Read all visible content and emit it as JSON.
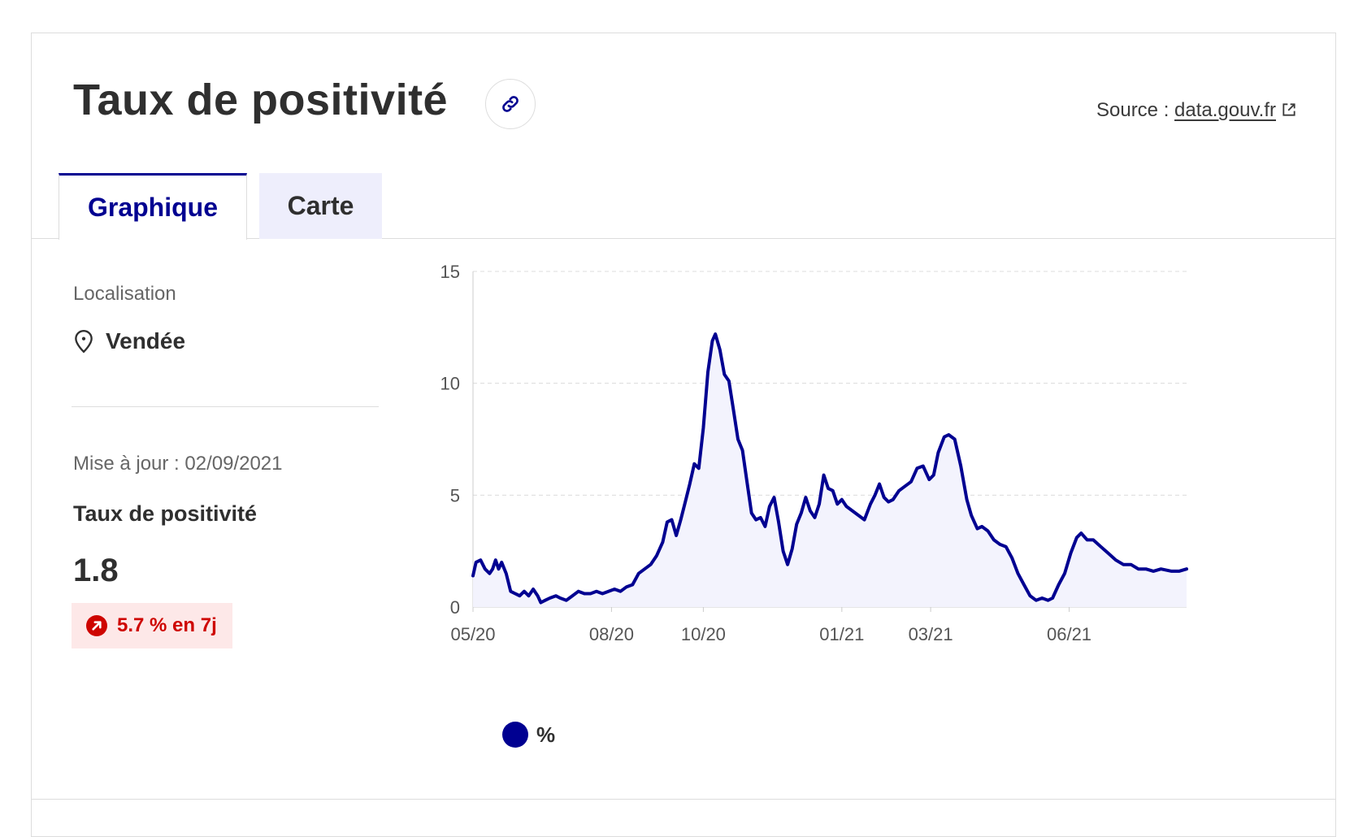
{
  "header": {
    "title": "Taux de positivité",
    "source_label": "Source : ",
    "source_link": "data.gouv.fr"
  },
  "tabs": [
    {
      "label": "Graphique",
      "active": true
    },
    {
      "label": "Carte",
      "active": false
    }
  ],
  "sidebar": {
    "location_label": "Localisation",
    "location_value": "Vendée",
    "update_text": "Mise à jour : 02/09/2021",
    "metric_label": "Taux de positivité",
    "metric_value": "1.8",
    "change_text": "5.7 % en 7j"
  },
  "colors": {
    "accent": "#000091",
    "badge_bg": "#fde8e8",
    "badge_text": "#ce0500",
    "area_fill": "#f3f3fd"
  },
  "legend": {
    "label": "%"
  },
  "chart_data": {
    "type": "area",
    "x_ticks": [
      "05/20",
      "08/20",
      "10/20",
      "01/21",
      "03/21",
      "06/21"
    ],
    "y_ticks": [
      0,
      5,
      10,
      15
    ],
    "ylim": [
      0,
      15
    ],
    "xlim": [
      "2020-05-13",
      "2021-08-30"
    ],
    "grid": true,
    "series": [
      {
        "name": "%",
        "points": [
          [
            "2020-05-13",
            1.4
          ],
          [
            "2020-05-15",
            2.0
          ],
          [
            "2020-05-18",
            2.1
          ],
          [
            "2020-05-21",
            1.7
          ],
          [
            "2020-05-24",
            1.5
          ],
          [
            "2020-05-26",
            1.7
          ],
          [
            "2020-05-28",
            2.1
          ],
          [
            "2020-05-30",
            1.7
          ],
          [
            "2020-06-01",
            2.0
          ],
          [
            "2020-06-04",
            1.5
          ],
          [
            "2020-06-07",
            0.7
          ],
          [
            "2020-06-10",
            0.6
          ],
          [
            "2020-06-13",
            0.5
          ],
          [
            "2020-06-16",
            0.7
          ],
          [
            "2020-06-19",
            0.5
          ],
          [
            "2020-06-22",
            0.8
          ],
          [
            "2020-06-25",
            0.5
          ],
          [
            "2020-06-27",
            0.2
          ],
          [
            "2020-06-30",
            0.3
          ],
          [
            "2020-07-03",
            0.4
          ],
          [
            "2020-07-07",
            0.5
          ],
          [
            "2020-07-10",
            0.4
          ],
          [
            "2020-07-14",
            0.3
          ],
          [
            "2020-07-18",
            0.5
          ],
          [
            "2020-07-22",
            0.7
          ],
          [
            "2020-07-26",
            0.6
          ],
          [
            "2020-07-30",
            0.6
          ],
          [
            "2020-08-03",
            0.7
          ],
          [
            "2020-08-07",
            0.6
          ],
          [
            "2020-08-11",
            0.7
          ],
          [
            "2020-08-15",
            0.8
          ],
          [
            "2020-08-19",
            0.7
          ],
          [
            "2020-08-23",
            0.9
          ],
          [
            "2020-08-27",
            1.0
          ],
          [
            "2020-08-31",
            1.5
          ],
          [
            "2020-09-04",
            1.7
          ],
          [
            "2020-09-08",
            1.9
          ],
          [
            "2020-09-12",
            2.3
          ],
          [
            "2020-09-16",
            2.9
          ],
          [
            "2020-09-19",
            3.8
          ],
          [
            "2020-09-22",
            3.9
          ],
          [
            "2020-09-25",
            3.2
          ],
          [
            "2020-09-28",
            3.9
          ],
          [
            "2020-10-01",
            4.7
          ],
          [
            "2020-10-04",
            5.5
          ],
          [
            "2020-10-07",
            6.4
          ],
          [
            "2020-10-10",
            6.2
          ],
          [
            "2020-10-13",
            8.0
          ],
          [
            "2020-10-16",
            10.5
          ],
          [
            "2020-10-19",
            11.9
          ],
          [
            "2020-10-21",
            12.2
          ],
          [
            "2020-10-24",
            11.5
          ],
          [
            "2020-10-27",
            10.4
          ],
          [
            "2020-10-30",
            10.1
          ],
          [
            "2020-11-02",
            8.8
          ],
          [
            "2020-11-05",
            7.5
          ],
          [
            "2020-11-08",
            7.0
          ],
          [
            "2020-11-11",
            5.6
          ],
          [
            "2020-11-14",
            4.2
          ],
          [
            "2020-11-17",
            3.9
          ],
          [
            "2020-11-20",
            4.0
          ],
          [
            "2020-11-23",
            3.6
          ],
          [
            "2020-11-26",
            4.5
          ],
          [
            "2020-11-29",
            4.9
          ],
          [
            "2020-12-02",
            3.8
          ],
          [
            "2020-12-05",
            2.5
          ],
          [
            "2020-12-08",
            1.9
          ],
          [
            "2020-12-11",
            2.6
          ],
          [
            "2020-12-14",
            3.7
          ],
          [
            "2020-12-17",
            4.2
          ],
          [
            "2020-12-20",
            4.9
          ],
          [
            "2020-12-23",
            4.3
          ],
          [
            "2020-12-26",
            4.0
          ],
          [
            "2020-12-29",
            4.6
          ],
          [
            "2021-01-01",
            5.9
          ],
          [
            "2021-01-04",
            5.3
          ],
          [
            "2021-01-07",
            5.2
          ],
          [
            "2021-01-10",
            4.6
          ],
          [
            "2021-01-13",
            4.8
          ],
          [
            "2021-01-16",
            4.5
          ],
          [
            "2021-01-20",
            4.3
          ],
          [
            "2021-01-24",
            4.1
          ],
          [
            "2021-01-28",
            3.9
          ],
          [
            "2021-02-01",
            4.6
          ],
          [
            "2021-02-04",
            5.0
          ],
          [
            "2021-02-07",
            5.5
          ],
          [
            "2021-02-10",
            4.9
          ],
          [
            "2021-02-13",
            4.7
          ],
          [
            "2021-02-16",
            4.8
          ],
          [
            "2021-02-20",
            5.2
          ],
          [
            "2021-02-24",
            5.4
          ],
          [
            "2021-02-28",
            5.6
          ],
          [
            "2021-03-04",
            6.2
          ],
          [
            "2021-03-08",
            6.3
          ],
          [
            "2021-03-12",
            5.7
          ],
          [
            "2021-03-15",
            5.9
          ],
          [
            "2021-03-18",
            6.9
          ],
          [
            "2021-03-22",
            7.6
          ],
          [
            "2021-03-25",
            7.7
          ],
          [
            "2021-03-29",
            7.5
          ],
          [
            "2021-04-02",
            6.3
          ],
          [
            "2021-04-06",
            4.8
          ],
          [
            "2021-04-09",
            4.1
          ],
          [
            "2021-04-13",
            3.5
          ],
          [
            "2021-04-16",
            3.6
          ],
          [
            "2021-04-20",
            3.4
          ],
          [
            "2021-04-24",
            3.0
          ],
          [
            "2021-04-28",
            2.8
          ],
          [
            "2021-05-02",
            2.7
          ],
          [
            "2021-05-06",
            2.2
          ],
          [
            "2021-05-10",
            1.5
          ],
          [
            "2021-05-14",
            1.0
          ],
          [
            "2021-05-18",
            0.5
          ],
          [
            "2021-05-22",
            0.3
          ],
          [
            "2021-05-26",
            0.4
          ],
          [
            "2021-05-30",
            0.3
          ],
          [
            "2021-06-02",
            0.4
          ],
          [
            "2021-06-06",
            1.0
          ],
          [
            "2021-06-10",
            1.5
          ],
          [
            "2021-06-14",
            2.4
          ],
          [
            "2021-06-18",
            3.1
          ],
          [
            "2021-06-21",
            3.3
          ],
          [
            "2021-06-25",
            3.0
          ],
          [
            "2021-06-29",
            3.0
          ],
          [
            "2021-07-04",
            2.7
          ],
          [
            "2021-07-09",
            2.4
          ],
          [
            "2021-07-14",
            2.1
          ],
          [
            "2021-07-19",
            1.9
          ],
          [
            "2021-07-24",
            1.9
          ],
          [
            "2021-07-29",
            1.7
          ],
          [
            "2021-08-03",
            1.7
          ],
          [
            "2021-08-08",
            1.6
          ],
          [
            "2021-08-13",
            1.7
          ],
          [
            "2021-08-20",
            1.6
          ],
          [
            "2021-08-25",
            1.6
          ],
          [
            "2021-08-30",
            1.7
          ]
        ]
      }
    ]
  }
}
